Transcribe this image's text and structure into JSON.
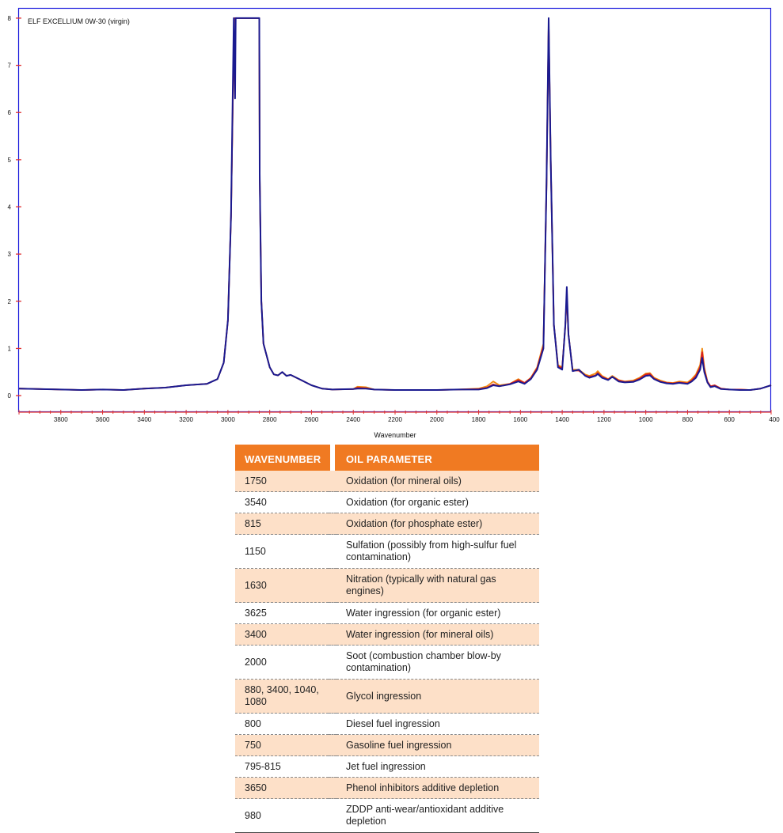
{
  "chart_data": {
    "type": "line",
    "title": "ELF EXCELLIUM 0W-30 (virgin)",
    "xlabel": "Wavenumber",
    "ylabel": "",
    "xlim": [
      4000,
      400
    ],
    "ylim": [
      -0.35,
      8.2
    ],
    "x_reversed": true,
    "x_ticks": [
      3800,
      3600,
      3400,
      3200,
      3000,
      2800,
      2600,
      2400,
      2200,
      2000,
      1800,
      1600,
      1400,
      1200,
      1000,
      800,
      600,
      400
    ],
    "y_ticks": [
      0,
      1,
      2,
      3,
      4,
      5,
      6,
      7,
      8
    ],
    "grid": false,
    "colors": {
      "frame": "#1a1adc",
      "axis": "#e03030",
      "series_blue": "#1a1a90",
      "series_red": "#d81e1e",
      "series_orange": "#f08a10"
    },
    "series": [
      {
        "color": "#f08a10",
        "points": [
          [
            4000,
            0.15
          ],
          [
            3800,
            0.13
          ],
          [
            3700,
            0.12
          ],
          [
            3600,
            0.13
          ],
          [
            3500,
            0.12
          ],
          [
            3400,
            0.15
          ],
          [
            3300,
            0.17
          ],
          [
            3200,
            0.22
          ],
          [
            3100,
            0.25
          ],
          [
            3050,
            0.35
          ],
          [
            3020,
            0.7
          ],
          [
            3000,
            1.6
          ],
          [
            2985,
            3.8
          ],
          [
            2970,
            8.0
          ],
          [
            2850,
            8.0
          ],
          [
            2848,
            4.7
          ],
          [
            2840,
            2.0
          ],
          [
            2830,
            1.1
          ],
          [
            2800,
            0.6
          ],
          [
            2780,
            0.45
          ],
          [
            2760,
            0.43
          ],
          [
            2740,
            0.5
          ],
          [
            2720,
            0.42
          ],
          [
            2700,
            0.44
          ],
          [
            2650,
            0.33
          ],
          [
            2600,
            0.22
          ],
          [
            2550,
            0.15
          ],
          [
            2500,
            0.13
          ],
          [
            2400,
            0.14
          ],
          [
            2380,
            0.19
          ],
          [
            2340,
            0.18
          ],
          [
            2300,
            0.13
          ],
          [
            2200,
            0.12
          ],
          [
            2000,
            0.12
          ],
          [
            1900,
            0.13
          ],
          [
            1800,
            0.15
          ],
          [
            1760,
            0.2
          ],
          [
            1730,
            0.3
          ],
          [
            1700,
            0.22
          ],
          [
            1650,
            0.25
          ],
          [
            1610,
            0.35
          ],
          [
            1580,
            0.27
          ],
          [
            1550,
            0.38
          ],
          [
            1520,
            0.6
          ],
          [
            1490,
            1.1
          ],
          [
            1475,
            4.5
          ],
          [
            1465,
            7.9
          ],
          [
            1455,
            5.0
          ],
          [
            1440,
            1.5
          ],
          [
            1420,
            0.65
          ],
          [
            1400,
            0.6
          ],
          [
            1385,
            1.5
          ],
          [
            1378,
            2.1
          ],
          [
            1370,
            1.3
          ],
          [
            1350,
            0.55
          ],
          [
            1320,
            0.55
          ],
          [
            1290,
            0.45
          ],
          [
            1270,
            0.42
          ],
          [
            1240,
            0.47
          ],
          [
            1230,
            0.52
          ],
          [
            1210,
            0.42
          ],
          [
            1180,
            0.35
          ],
          [
            1160,
            0.42
          ],
          [
            1130,
            0.33
          ],
          [
            1100,
            0.3
          ],
          [
            1060,
            0.32
          ],
          [
            1030,
            0.38
          ],
          [
            1000,
            0.47
          ],
          [
            980,
            0.48
          ],
          [
            960,
            0.38
          ],
          [
            930,
            0.32
          ],
          [
            900,
            0.28
          ],
          [
            870,
            0.27
          ],
          [
            840,
            0.3
          ],
          [
            800,
            0.28
          ],
          [
            780,
            0.35
          ],
          [
            760,
            0.45
          ],
          [
            740,
            0.65
          ],
          [
            730,
            1.0
          ],
          [
            720,
            0.6
          ],
          [
            705,
            0.3
          ],
          [
            690,
            0.2
          ],
          [
            670,
            0.22
          ],
          [
            640,
            0.15
          ],
          [
            600,
            0.13
          ],
          [
            550,
            0.13
          ],
          [
            500,
            0.12
          ],
          [
            450,
            0.15
          ],
          [
            400,
            0.22
          ]
        ]
      },
      {
        "color": "#d81e1e",
        "points": [
          [
            4000,
            0.15
          ],
          [
            3800,
            0.13
          ],
          [
            3700,
            0.12
          ],
          [
            3600,
            0.13
          ],
          [
            3500,
            0.12
          ],
          [
            3400,
            0.15
          ],
          [
            3300,
            0.17
          ],
          [
            3200,
            0.22
          ],
          [
            3100,
            0.25
          ],
          [
            3050,
            0.35
          ],
          [
            3020,
            0.7
          ],
          [
            3000,
            1.6
          ],
          [
            2985,
            3.8
          ],
          [
            2970,
            8.0
          ],
          [
            2850,
            8.0
          ],
          [
            2848,
            4.7
          ],
          [
            2840,
            2.0
          ],
          [
            2830,
            1.1
          ],
          [
            2800,
            0.6
          ],
          [
            2780,
            0.45
          ],
          [
            2760,
            0.43
          ],
          [
            2740,
            0.5
          ],
          [
            2720,
            0.42
          ],
          [
            2700,
            0.44
          ],
          [
            2650,
            0.33
          ],
          [
            2600,
            0.22
          ],
          [
            2550,
            0.15
          ],
          [
            2500,
            0.13
          ],
          [
            2400,
            0.14
          ],
          [
            2380,
            0.17
          ],
          [
            2340,
            0.16
          ],
          [
            2300,
            0.13
          ],
          [
            2200,
            0.12
          ],
          [
            2000,
            0.12
          ],
          [
            1900,
            0.13
          ],
          [
            1800,
            0.14
          ],
          [
            1760,
            0.17
          ],
          [
            1730,
            0.24
          ],
          [
            1700,
            0.2
          ],
          [
            1650,
            0.25
          ],
          [
            1610,
            0.33
          ],
          [
            1580,
            0.27
          ],
          [
            1550,
            0.37
          ],
          [
            1520,
            0.58
          ],
          [
            1490,
            1.05
          ],
          [
            1475,
            4.5
          ],
          [
            1465,
            7.9
          ],
          [
            1455,
            5.0
          ],
          [
            1440,
            1.5
          ],
          [
            1420,
            0.62
          ],
          [
            1400,
            0.58
          ],
          [
            1385,
            1.5
          ],
          [
            1378,
            2.1
          ],
          [
            1370,
            1.3
          ],
          [
            1350,
            0.53
          ],
          [
            1320,
            0.53
          ],
          [
            1290,
            0.43
          ],
          [
            1270,
            0.4
          ],
          [
            1240,
            0.43
          ],
          [
            1230,
            0.48
          ],
          [
            1210,
            0.4
          ],
          [
            1180,
            0.34
          ],
          [
            1160,
            0.4
          ],
          [
            1130,
            0.32
          ],
          [
            1100,
            0.29
          ],
          [
            1060,
            0.3
          ],
          [
            1030,
            0.36
          ],
          [
            1000,
            0.45
          ],
          [
            980,
            0.46
          ],
          [
            960,
            0.36
          ],
          [
            930,
            0.3
          ],
          [
            900,
            0.27
          ],
          [
            870,
            0.26
          ],
          [
            840,
            0.28
          ],
          [
            800,
            0.26
          ],
          [
            780,
            0.32
          ],
          [
            760,
            0.42
          ],
          [
            740,
            0.6
          ],
          [
            730,
            0.92
          ],
          [
            720,
            0.55
          ],
          [
            705,
            0.3
          ],
          [
            690,
            0.2
          ],
          [
            670,
            0.22
          ],
          [
            640,
            0.15
          ],
          [
            600,
            0.13
          ],
          [
            550,
            0.13
          ],
          [
            500,
            0.12
          ],
          [
            450,
            0.15
          ],
          [
            400,
            0.22
          ]
        ]
      },
      {
        "color": "#1a1a90",
        "points": [
          [
            4000,
            0.15
          ],
          [
            3800,
            0.13
          ],
          [
            3700,
            0.12
          ],
          [
            3600,
            0.13
          ],
          [
            3500,
            0.12
          ],
          [
            3400,
            0.15
          ],
          [
            3300,
            0.17
          ],
          [
            3200,
            0.22
          ],
          [
            3100,
            0.25
          ],
          [
            3050,
            0.35
          ],
          [
            3020,
            0.7
          ],
          [
            3000,
            1.6
          ],
          [
            2985,
            3.8
          ],
          [
            2972,
            8.0
          ],
          [
            2966,
            6.3
          ],
          [
            2963,
            8.0
          ],
          [
            2850,
            8.0
          ],
          [
            2848,
            4.7
          ],
          [
            2840,
            2.0
          ],
          [
            2830,
            1.1
          ],
          [
            2800,
            0.6
          ],
          [
            2780,
            0.45
          ],
          [
            2760,
            0.43
          ],
          [
            2740,
            0.5
          ],
          [
            2720,
            0.42
          ],
          [
            2700,
            0.44
          ],
          [
            2650,
            0.33
          ],
          [
            2600,
            0.22
          ],
          [
            2550,
            0.15
          ],
          [
            2500,
            0.13
          ],
          [
            2400,
            0.14
          ],
          [
            2380,
            0.15
          ],
          [
            2340,
            0.15
          ],
          [
            2300,
            0.13
          ],
          [
            2200,
            0.12
          ],
          [
            2000,
            0.12
          ],
          [
            1900,
            0.13
          ],
          [
            1800,
            0.13
          ],
          [
            1760,
            0.16
          ],
          [
            1730,
            0.22
          ],
          [
            1700,
            0.2
          ],
          [
            1650,
            0.24
          ],
          [
            1610,
            0.3
          ],
          [
            1580,
            0.25
          ],
          [
            1550,
            0.35
          ],
          [
            1520,
            0.55
          ],
          [
            1490,
            1.0
          ],
          [
            1475,
            4.5
          ],
          [
            1465,
            8.0
          ],
          [
            1455,
            5.0
          ],
          [
            1440,
            1.5
          ],
          [
            1420,
            0.6
          ],
          [
            1400,
            0.55
          ],
          [
            1385,
            1.5
          ],
          [
            1378,
            2.3
          ],
          [
            1370,
            1.3
          ],
          [
            1350,
            0.52
          ],
          [
            1320,
            0.55
          ],
          [
            1290,
            0.42
          ],
          [
            1270,
            0.38
          ],
          [
            1240,
            0.42
          ],
          [
            1230,
            0.46
          ],
          [
            1210,
            0.38
          ],
          [
            1180,
            0.33
          ],
          [
            1160,
            0.4
          ],
          [
            1130,
            0.3
          ],
          [
            1100,
            0.28
          ],
          [
            1060,
            0.29
          ],
          [
            1030,
            0.34
          ],
          [
            1000,
            0.42
          ],
          [
            980,
            0.43
          ],
          [
            960,
            0.35
          ],
          [
            930,
            0.29
          ],
          [
            900,
            0.26
          ],
          [
            870,
            0.25
          ],
          [
            840,
            0.27
          ],
          [
            800,
            0.25
          ],
          [
            780,
            0.3
          ],
          [
            760,
            0.38
          ],
          [
            740,
            0.55
          ],
          [
            730,
            0.8
          ],
          [
            720,
            0.5
          ],
          [
            705,
            0.28
          ],
          [
            690,
            0.18
          ],
          [
            670,
            0.2
          ],
          [
            640,
            0.14
          ],
          [
            600,
            0.13
          ],
          [
            550,
            0.12
          ],
          [
            500,
            0.12
          ],
          [
            450,
            0.15
          ],
          [
            400,
            0.22
          ]
        ]
      }
    ]
  },
  "table": {
    "headers": [
      "WAVENUMBER",
      "OIL PARAMETER"
    ],
    "rows": [
      {
        "wavenumber": "1750",
        "parameter": "Oxidation (for mineral oils)"
      },
      {
        "wavenumber": "3540",
        "parameter": "Oxidation (for organic ester)"
      },
      {
        "wavenumber": "815",
        "parameter": "Oxidation (for phosphate ester)"
      },
      {
        "wavenumber": "1150",
        "parameter": "Sulfation (possibly from high-sulfur fuel contamination)"
      },
      {
        "wavenumber": "1630",
        "parameter": "Nitration (typically with natural gas engines)"
      },
      {
        "wavenumber": "3625",
        "parameter": "Water ingression (for organic ester)"
      },
      {
        "wavenumber": "3400",
        "parameter": "Water ingression (for mineral oils)"
      },
      {
        "wavenumber": "2000",
        "parameter": "Soot (combustion chamber blow-by contamination)"
      },
      {
        "wavenumber": "880, 3400, 1040, 1080",
        "parameter": "Glycol ingression"
      },
      {
        "wavenumber": "800",
        "parameter": "Diesel fuel ingression"
      },
      {
        "wavenumber": "750",
        "parameter": "Gasoline fuel ingression"
      },
      {
        "wavenumber": "795-815",
        "parameter": "Jet fuel ingression"
      },
      {
        "wavenumber": "3650",
        "parameter": "Phenol inhibitors additive depletion"
      },
      {
        "wavenumber": "980",
        "parameter": "ZDDP anti-wear/antioxidant additive depletion"
      }
    ]
  }
}
